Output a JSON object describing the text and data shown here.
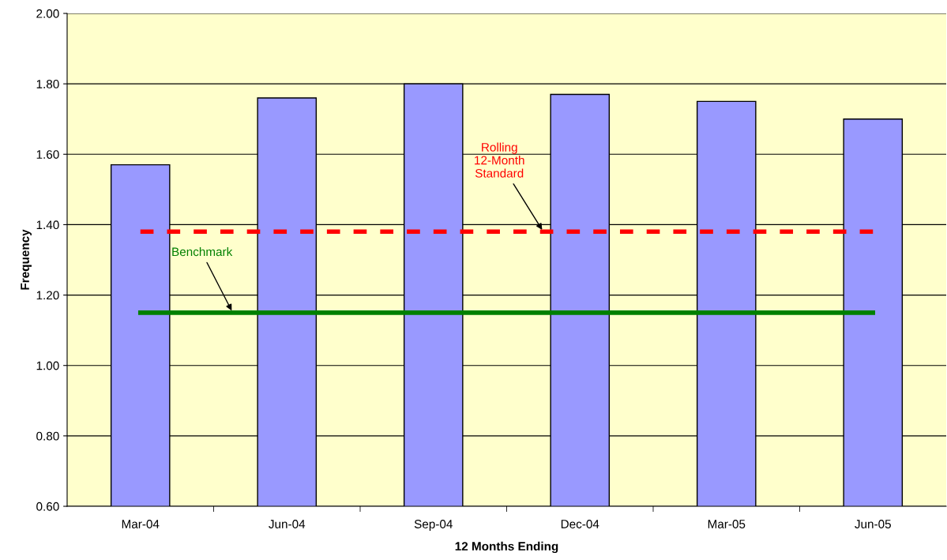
{
  "chart_data": {
    "type": "bar",
    "xlabel": "12 Months Ending",
    "ylabel": "Frequency",
    "categories": [
      "Mar-04",
      "Jun-04",
      "Sep-04",
      "Dec-04",
      "Mar-05",
      "Jun-05"
    ],
    "series": [
      {
        "color": "#9999ff",
        "values": [
          1.57,
          1.76,
          1.8,
          1.77,
          1.75,
          1.7
        ]
      },
      {
        "type": "line",
        "name": "Rolling\n12-Month\nStandard",
        "color": "#ff0000",
        "line_style": "dashed",
        "values": [
          1.38,
          1.38,
          1.38,
          1.38,
          1.38,
          1.38
        ]
      },
      {
        "type": "line",
        "name": "Benchmark",
        "color": "#008000",
        "line_style": "solid",
        "values": [
          1.15,
          1.15,
          1.15,
          1.15,
          1.15,
          1.15
        ]
      }
    ],
    "ylim": [
      0.6,
      2.0
    ],
    "yticks": [
      {
        "value": 0.6,
        "label": "0.60"
      },
      {
        "value": 0.8,
        "label": "0.80"
      },
      {
        "value": 1.0,
        "label": "1.00"
      },
      {
        "value": 1.2,
        "label": "1.20"
      },
      {
        "value": 1.4,
        "label": "1.40"
      },
      {
        "value": 1.6,
        "label": "1.60"
      },
      {
        "value": 1.8,
        "label": "1.80"
      },
      {
        "value": 2.0,
        "label": "2.00"
      }
    ],
    "grid": "y",
    "legend": false
  }
}
